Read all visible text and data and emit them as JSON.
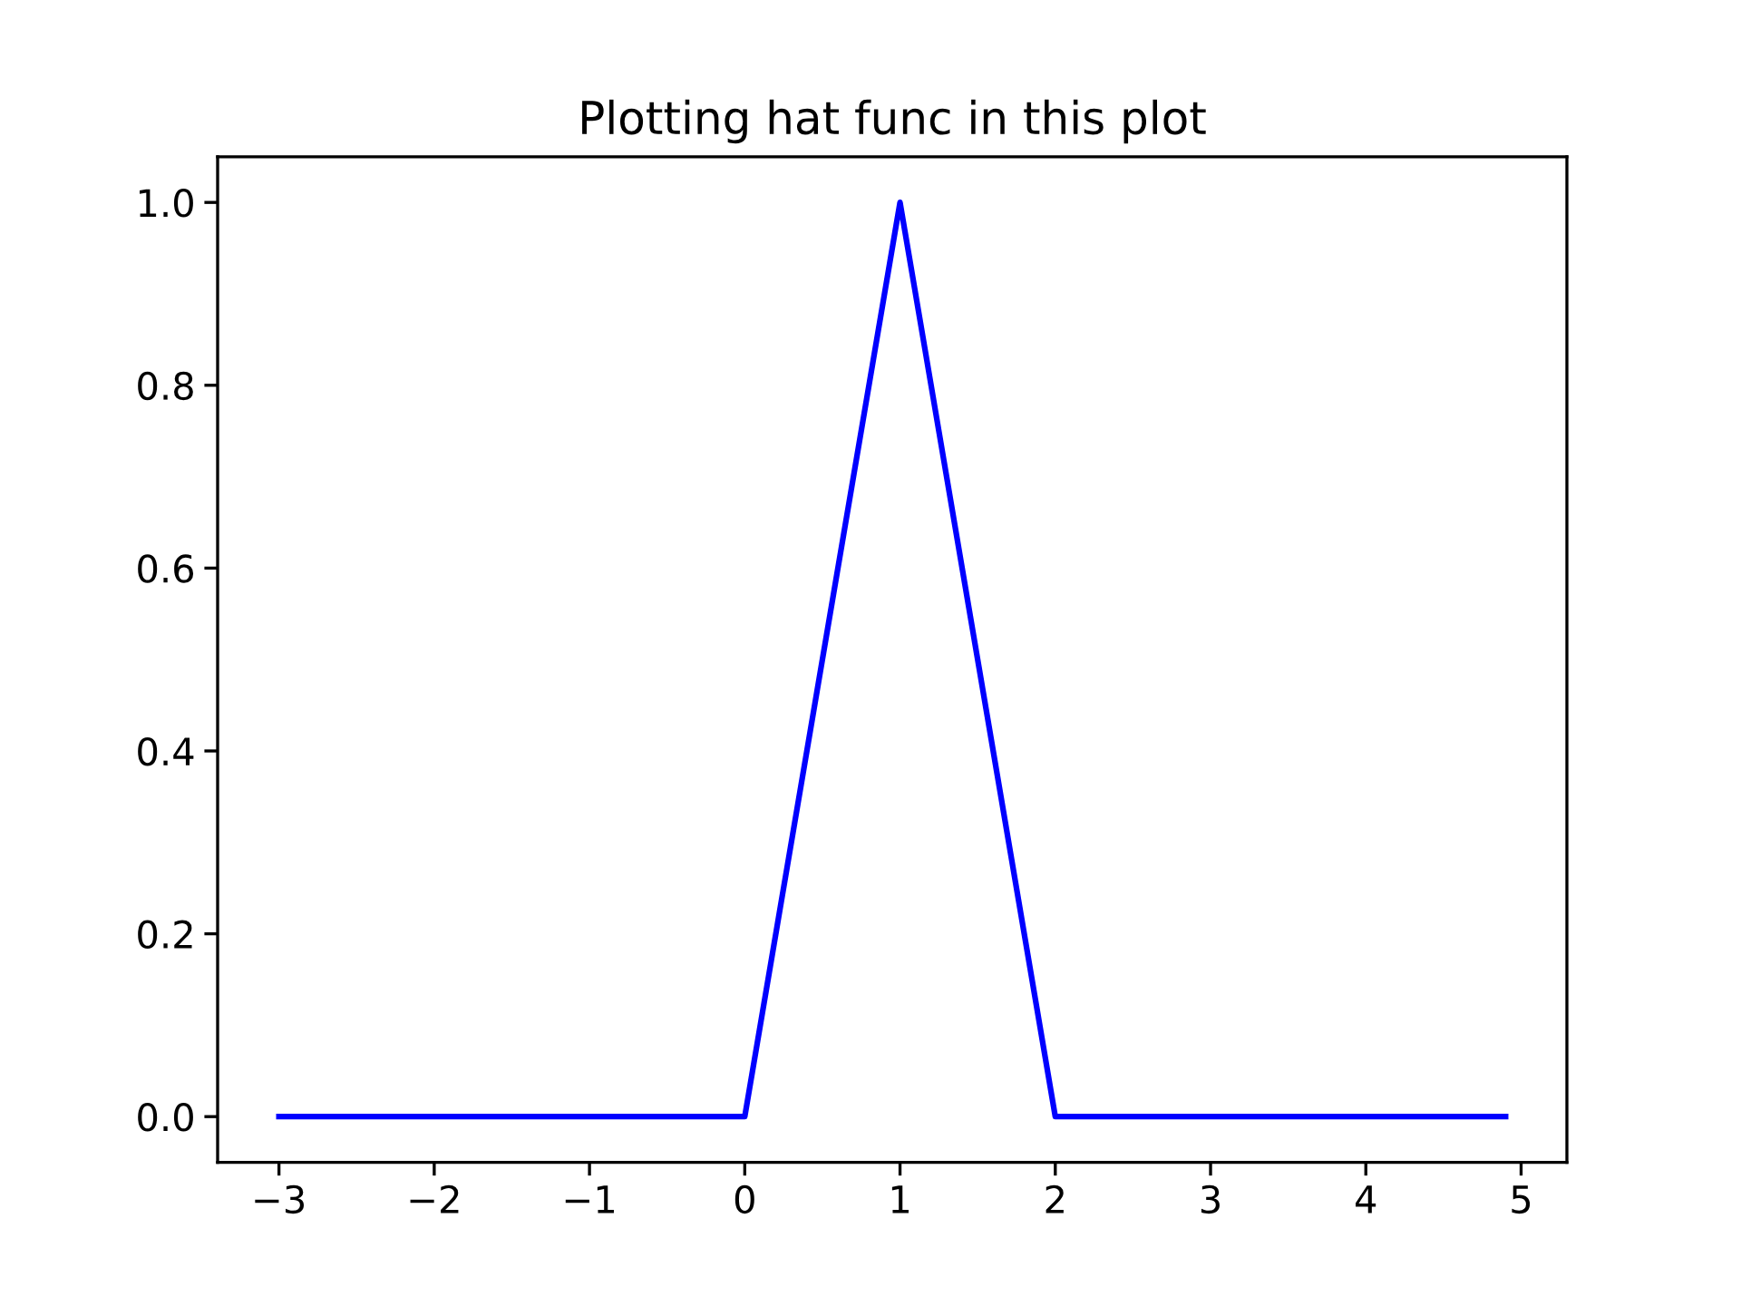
{
  "chart_data": {
    "type": "line",
    "title": "Plotting hat func in this plot",
    "x": [
      -3,
      0,
      1,
      2,
      4.9
    ],
    "series": [
      {
        "color": "#0000ff",
        "values": [
          0,
          0,
          1,
          0,
          0
        ]
      }
    ],
    "xlim": [
      -3.395,
      5.295
    ],
    "ylim": [
      -0.05,
      1.05
    ],
    "xticks": [
      {
        "value": -3,
        "label": "−3"
      },
      {
        "value": -2,
        "label": "−2"
      },
      {
        "value": -1,
        "label": "−1"
      },
      0,
      1,
      2,
      3,
      4,
      5
    ],
    "yticks": [
      {
        "value": 0,
        "label": "0.0"
      },
      {
        "value": 0.2,
        "label": "0.2"
      },
      {
        "value": 0.4,
        "label": "0.4"
      },
      {
        "value": 0.6,
        "label": "0.6"
      },
      {
        "value": 0.8,
        "label": "0.8"
      },
      {
        "value": 1,
        "label": "1.0"
      }
    ],
    "grid": false,
    "legend": false,
    "marker": "none",
    "line_style": "solid"
  }
}
